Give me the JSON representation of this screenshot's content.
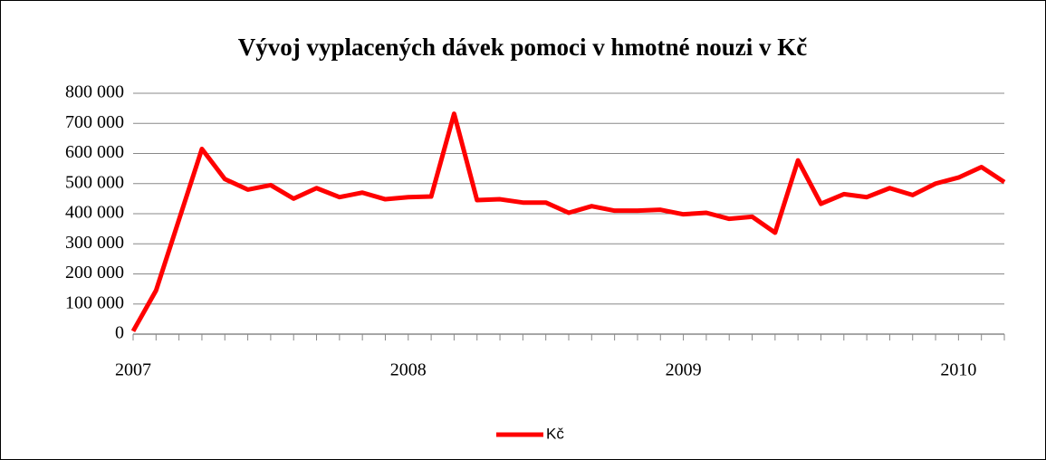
{
  "chart_data": {
    "type": "line",
    "title": "Vývoj vyplacených dávek pomoci v hmotné nouzi v Kč",
    "categories": [
      "2007",
      null,
      null,
      null,
      null,
      null,
      null,
      null,
      null,
      null,
      null,
      null,
      "2008",
      null,
      null,
      null,
      null,
      null,
      null,
      null,
      null,
      null,
      null,
      null,
      "2009",
      null,
      null,
      null,
      null,
      null,
      null,
      null,
      null,
      null,
      null,
      null,
      "2010",
      null,
      null
    ],
    "series": [
      {
        "name": "Kč",
        "color": "#ff0000",
        "values": [
          10000,
          145000,
          380000,
          615000,
          515000,
          480000,
          495000,
          450000,
          485000,
          455000,
          470000,
          448000,
          455000,
          457000,
          732000,
          445000,
          448000,
          437000,
          437000,
          403000,
          425000,
          410000,
          410000,
          413000,
          398000,
          403000,
          383000,
          390000,
          337000,
          577000,
          433000,
          465000,
          455000,
          485000,
          462000,
          500000,
          520000,
          555000,
          505000
        ]
      }
    ],
    "ylim": [
      0,
      800000
    ],
    "yticks": [
      0,
      {
        "value": 100000,
        "label": "100 000"
      },
      {
        "value": 200000,
        "label": "200 000"
      },
      {
        "value": 300000,
        "label": "300 000"
      },
      {
        "value": 400000,
        "label": "400 000"
      },
      {
        "value": 500000,
        "label": "500 000"
      },
      {
        "value": 600000,
        "label": "600 000"
      },
      {
        "value": 700000,
        "label": "700 000"
      },
      {
        "value": 800000,
        "label": "800 000"
      }
    ],
    "grid": true,
    "legend": "bottom"
  }
}
